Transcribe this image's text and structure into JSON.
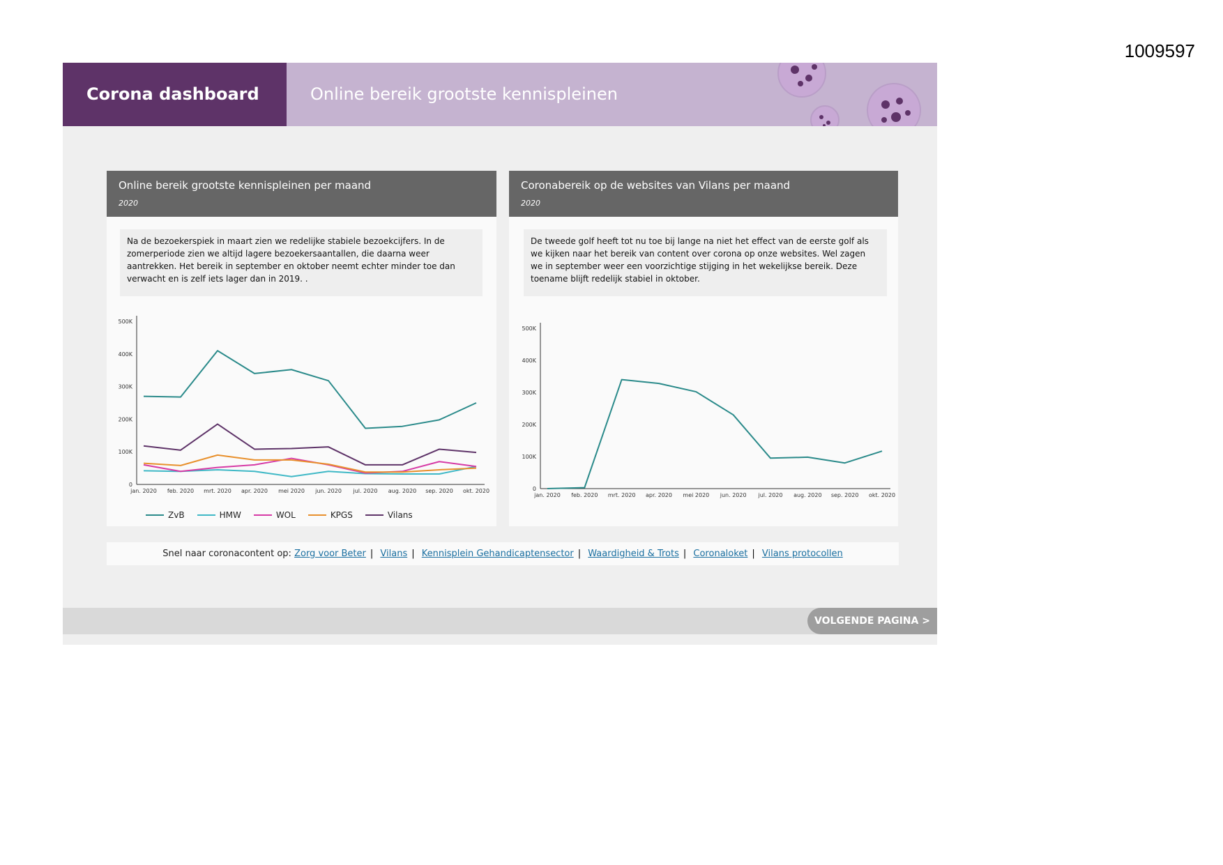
{
  "doc_id": "1009597",
  "header": {
    "title": "Corona dashboard",
    "subtitle": "Online bereik grootste kennispleinen"
  },
  "panel_left": {
    "title": "Online bereik grootste kennispleinen per maand",
    "year": "2020",
    "note": "Na de bezoekerspiek in maart zien we redelijke stabiele bezoekcijfers. In de zomerperiode zien we altijd lagere bezoekersaantallen, die daarna weer aantrekken. Het bereik in september en oktober neemt echter minder toe dan verwacht en is zelf iets lager dan in 2019. ."
  },
  "panel_right": {
    "title": "Coronabereik op de websites van Vilans per maand",
    "year": "2020",
    "note": "De tweede golf heeft tot nu toe bij lange na niet het effect van de eerste golf als we kijken naar het bereik van content over corona op onze websites. Wel zagen we in september weer een voorzichtige stijging in het wekelijkse bereik. Deze toename blijft redelijk stabiel in oktober."
  },
  "links": {
    "intro": "Snel naar coronacontent op:",
    "items": [
      "Zorg voor Beter",
      "Vilans",
      "Kennisplein Gehandicaptensector",
      "Waardigheid & Trots",
      "Coronaloket",
      "Vilans protocollen"
    ]
  },
  "footer": {
    "next_label": "VOLGENDE PAGINA >"
  },
  "colors": {
    "header_dark": "#5e3368",
    "header_light": "#c5b3d0"
  },
  "chart_data": [
    {
      "type": "line",
      "title": "Online bereik grootste kennispleinen per maand",
      "categories": [
        "jan. 2020",
        "feb. 2020",
        "mrt. 2020",
        "apr. 2020",
        "mei 2020",
        "jun. 2020",
        "jul. 2020",
        "aug. 2020",
        "sep. 2020",
        "okt. 2020"
      ],
      "ylim": [
        0,
        500000
      ],
      "yticks": [
        "0",
        "100K",
        "200K",
        "300K",
        "400K",
        "500K"
      ],
      "legend": "bottom",
      "series": [
        {
          "name": "ZvB",
          "color": "#2a8a8a",
          "values": [
            270000,
            268000,
            410000,
            340000,
            352000,
            318000,
            172000,
            178000,
            198000,
            250000
          ]
        },
        {
          "name": "HMW",
          "color": "#3fb8c6",
          "values": [
            42000,
            40000,
            45000,
            40000,
            24000,
            40000,
            33000,
            32000,
            32000,
            55000
          ]
        },
        {
          "name": "WOL",
          "color": "#d63aa5",
          "values": [
            60000,
            40000,
            52000,
            60000,
            80000,
            60000,
            35000,
            40000,
            70000,
            55000
          ]
        },
        {
          "name": "KPGS",
          "color": "#e8902c",
          "values": [
            65000,
            58000,
            90000,
            75000,
            75000,
            62000,
            38000,
            38000,
            45000,
            50000
          ]
        },
        {
          "name": "Vilans",
          "color": "#5e3368",
          "values": [
            118000,
            105000,
            185000,
            108000,
            110000,
            115000,
            60000,
            60000,
            108000,
            98000
          ]
        }
      ]
    },
    {
      "type": "line",
      "title": "Coronabereik op de websites van Vilans per maand",
      "categories": [
        "jan. 2020",
        "feb. 2020",
        "mrt. 2020",
        "apr. 2020",
        "mei 2020",
        "jun. 2020",
        "jul. 2020",
        "aug. 2020",
        "sep. 2020",
        "okt. 2020"
      ],
      "ylim": [
        0,
        500000
      ],
      "yticks": [
        "0",
        "100K",
        "200K",
        "300K",
        "400K",
        "500K"
      ],
      "series": [
        {
          "color": "#2a8a8a",
          "values": [
            0,
            3000,
            340000,
            328000,
            302000,
            230000,
            95000,
            98000,
            80000,
            117000
          ]
        }
      ]
    }
  ]
}
